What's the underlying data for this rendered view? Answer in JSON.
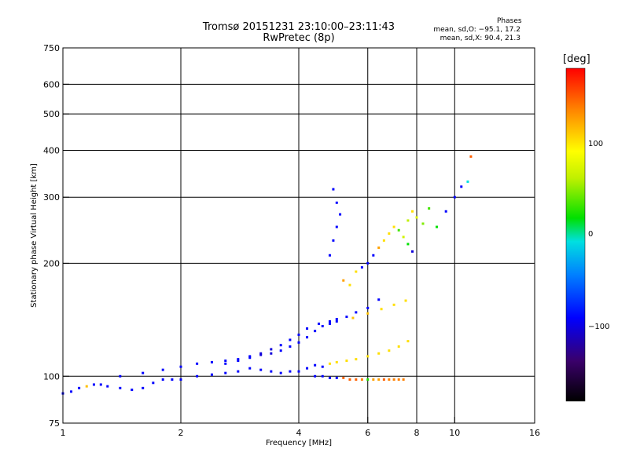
{
  "header": {
    "title_line1": "Tromsø 20151231 23:10:00–23:11:43",
    "title_line2": "RwPretec (8p)"
  },
  "phases_box": {
    "title": "Phases",
    "line1": "mean, sd,O: −95.1, 17.2",
    "line2": "mean, sd,X:  90.4, 21.3"
  },
  "colorbar": {
    "title": "[deg]",
    "ticks": [
      "100",
      "0",
      "−100"
    ],
    "range": [
      -180,
      180
    ]
  },
  "chart_data": {
    "type": "scatter",
    "title": "Tromsø 20151231 23:10:00–23:11:43",
    "subtitle": "RwPretec (8p)",
    "xlabel": "Frequency [MHz]",
    "ylabel": "Stationary phase Virtual Height [km]",
    "x_scale": "log",
    "y_scale": "log",
    "xlim": [
      1,
      16
    ],
    "ylim": [
      75,
      750
    ],
    "x_ticks": [
      1,
      2,
      4,
      6,
      8,
      10,
      16
    ],
    "y_ticks": [
      75,
      100,
      200,
      300,
      400,
      500,
      600,
      750
    ],
    "grid_x": [
      2,
      4,
      6,
      8,
      10
    ],
    "grid_y": [
      100,
      200,
      300,
      400,
      500,
      600
    ],
    "color_axis": "phase [deg]",
    "series": [
      {
        "x": [
          1.0,
          1.05,
          1.1,
          1.15,
          1.2,
          1.25,
          1.3,
          1.4,
          1.5,
          1.6,
          1.7,
          1.8,
          1.9,
          2.0,
          2.2,
          2.4,
          2.6,
          2.8,
          3.0,
          3.2,
          3.4,
          3.6,
          3.8,
          4.0,
          4.2,
          4.4,
          4.6,
          4.8,
          5.0,
          5.3,
          5.6,
          6.0,
          6.4,
          6.8,
          7.2,
          7.6
        ],
        "y": [
          90,
          91,
          93,
          94,
          95,
          95,
          94,
          93,
          92,
          93,
          96,
          98,
          98,
          98,
          100,
          101,
          102,
          103,
          105,
          104,
          103,
          102,
          103,
          103,
          105,
          107,
          106,
          108,
          109,
          110,
          111,
          113,
          115,
          117,
          120,
          124
        ],
        "phase": [
          -100,
          -100,
          -100,
          120,
          -100,
          -100,
          -100,
          -100,
          -100,
          -100,
          -100,
          -100,
          -100,
          -100,
          -100,
          -100,
          -100,
          -100,
          -100,
          -100,
          -100,
          -100,
          -100,
          -100,
          -100,
          -100,
          -100,
          110,
          110,
          110,
          110,
          110,
          110,
          110,
          110,
          110
        ]
      },
      {
        "x": [
          1.4,
          1.6,
          1.8,
          2.0,
          2.2,
          2.4,
          2.6,
          2.8,
          3.0,
          3.2,
          3.4,
          3.6,
          3.8,
          4.0,
          4.2,
          4.4,
          4.6,
          4.8,
          5.0,
          5.5,
          6.0,
          6.5,
          7.0,
          7.5
        ],
        "y": [
          100,
          102,
          104,
          106,
          108,
          109,
          110,
          111,
          113,
          114,
          115,
          117,
          120,
          123,
          127,
          132,
          136,
          138,
          140,
          143,
          147,
          151,
          155,
          159
        ],
        "phase": [
          -100,
          -100,
          -100,
          -100,
          -100,
          -100,
          -100,
          -100,
          -100,
          -110,
          -110,
          -100,
          -100,
          -100,
          -100,
          -100,
          -100,
          -100,
          -100,
          120,
          120,
          110,
          110,
          110
        ]
      },
      {
        "x": [
          2.6,
          2.8,
          3.0,
          3.2,
          3.4,
          3.6,
          3.8,
          4.0,
          4.2,
          4.5,
          4.8,
          5.0,
          5.3,
          5.6,
          6.0,
          6.4
        ],
        "y": [
          108,
          110,
          112,
          115,
          118,
          121,
          125,
          129,
          134,
          138,
          140,
          142,
          144,
          148,
          152,
          160
        ],
        "phase": [
          -100,
          -100,
          -100,
          -110,
          -110,
          -100,
          -100,
          -100,
          -100,
          -100,
          -100,
          -100,
          -100,
          -100,
          -100,
          -100
        ]
      },
      {
        "x": [
          4.8,
          4.9,
          5.0,
          5.1,
          5.0,
          4.9,
          5.2,
          5.4,
          5.6,
          5.8,
          6.0,
          6.2,
          6.4,
          6.6,
          6.8,
          7.0,
          7.2,
          7.4,
          7.6,
          7.8
        ],
        "y": [
          210,
          230,
          250,
          270,
          290,
          315,
          180,
          175,
          190,
          195,
          200,
          210,
          220,
          230,
          240,
          250,
          245,
          235,
          225,
          215
        ],
        "phase": [
          -100,
          -100,
          -100,
          -100,
          -100,
          -100,
          130,
          110,
          110,
          -100,
          -100,
          -100,
          130,
          110,
          110,
          110,
          20,
          70,
          0,
          -110
        ]
      },
      {
        "x": [
          4.4,
          4.6,
          4.8,
          5.0,
          5.2,
          5.4,
          5.6,
          5.8,
          6.0,
          6.2,
          6.4,
          6.6,
          6.8,
          7.0,
          7.2,
          7.4
        ],
        "y": [
          100,
          100,
          99,
          99,
          99,
          98,
          98,
          98,
          98,
          98,
          98,
          98,
          98,
          98,
          98,
          98
        ],
        "phase": [
          -100,
          -100,
          -100,
          -100,
          150,
          150,
          150,
          140,
          10,
          130,
          130,
          150,
          140,
          140,
          140,
          140
        ]
      },
      {
        "x": [
          7.6,
          7.8,
          8.0,
          8.3,
          8.6,
          9.0,
          9.5,
          10.0,
          10.4,
          10.8,
          11.0
        ],
        "y": [
          260,
          275,
          265,
          255,
          280,
          250,
          275,
          300,
          320,
          330,
          385
        ],
        "phase": [
          60,
          110,
          80,
          40,
          20,
          0,
          -100,
          -100,
          -100,
          -20,
          150
        ]
      }
    ]
  }
}
